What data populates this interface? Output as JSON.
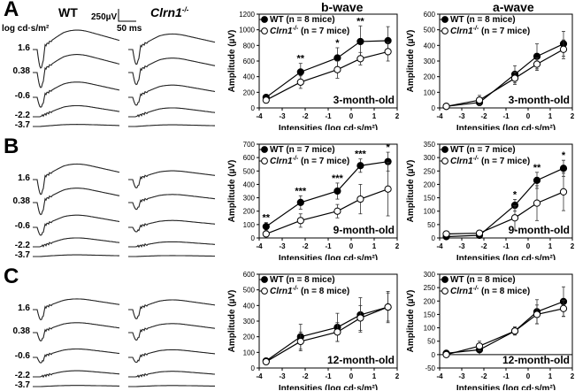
{
  "panels": [
    {
      "letter": "A",
      "wt_label": "WT",
      "ko_label": "Clrn1",
      "ko_sup": "-/-",
      "intensity_header": "log cd·s/m²",
      "scale_amp": "250µV",
      "scale_time": "50 ms",
      "intensities": [
        "1.6",
        "0.38",
        "-0.6",
        "-2.2",
        "-3.7"
      ]
    },
    {
      "letter": "B",
      "intensities": [
        "1.6",
        "0.38",
        "-0.6",
        "-2.2",
        "-3.7"
      ]
    },
    {
      "letter": "C",
      "intensities": [
        "1.6",
        "0.38",
        "-0.6",
        "-2.2",
        "-3.7"
      ]
    }
  ],
  "column_titles": {
    "bwave": "b-wave",
    "awave": "a-wave"
  },
  "colors": {
    "ink": "#000000",
    "background": "#ffffff"
  },
  "chart_data": [
    {
      "type": "line",
      "title": "b-wave",
      "age": "3-month-old",
      "xlabel": "Intensities (log cd·s/m²)",
      "ylabel": "Amplitude (µV)",
      "xlim": [
        -4,
        2
      ],
      "ylim": [
        0,
        1200
      ],
      "yticks": [
        0,
        200,
        400,
        600,
        800,
        1000,
        1200
      ],
      "xticks": [
        -4,
        -3,
        -2,
        -1,
        0,
        1,
        2
      ],
      "legend": "top-left",
      "x": [
        -3.7,
        -2.2,
        -0.6,
        0.4,
        1.6
      ],
      "series": [
        {
          "name": "WT (n = 8 mice)",
          "values": [
            135,
            460,
            640,
            850,
            860
          ],
          "err": [
            30,
            110,
            130,
            200,
            180
          ],
          "marker": "filled"
        },
        {
          "name_main": "Clrn1",
          "name_sup": "-/-",
          "name_rest": " (n = 7 mice)",
          "values": [
            100,
            330,
            490,
            630,
            720
          ],
          "err": [
            25,
            80,
            110,
            80,
            120
          ],
          "marker": "open"
        }
      ],
      "annotations": [
        {
          "x": -2.2,
          "text": "**"
        },
        {
          "x": -0.6,
          "text": "*"
        },
        {
          "x": 0.4,
          "text": "**"
        }
      ]
    },
    {
      "type": "line",
      "title": "a-wave",
      "age": "3-month-old",
      "xlabel": "Intensities (log cd·s/m²)",
      "ylabel": "Amplitude (µV)",
      "xlim": [
        -4,
        2
      ],
      "ylim": [
        0,
        600
      ],
      "yticks": [
        0,
        100,
        200,
        300,
        400,
        500,
        600
      ],
      "xticks": [
        -4,
        -3,
        -2,
        -1,
        0,
        1,
        2
      ],
      "legend": "top-left",
      "x": [
        -3.7,
        -2.2,
        -0.6,
        0.4,
        1.6
      ],
      "series": [
        {
          "name": "WT (n = 8 mice)",
          "values": [
            10,
            35,
            215,
            330,
            410
          ],
          "err": [
            5,
            20,
            55,
            80,
            80
          ],
          "marker": "filled"
        },
        {
          "name_main": "Clrn1",
          "name_sup": "-/-",
          "name_rest": " (n = 7 mice)",
          "values": [
            10,
            50,
            190,
            280,
            375
          ],
          "err": [
            5,
            30,
            40,
            40,
            60
          ],
          "marker": "open"
        }
      ],
      "annotations": []
    },
    {
      "type": "line",
      "title": "b-wave",
      "age": "9-month-old",
      "xlabel": "Intensities (log cd·s/m²)",
      "ylabel": "Amplitude (µV)",
      "xlim": [
        -4,
        2
      ],
      "ylim": [
        0,
        700
      ],
      "yticks": [
        0,
        100,
        200,
        300,
        400,
        500,
        600,
        700
      ],
      "xticks": [
        -4,
        -3,
        -2,
        -1,
        0,
        1,
        2
      ],
      "legend": "top-left",
      "x": [
        -3.7,
        -2.2,
        -0.6,
        0.4,
        1.6
      ],
      "series": [
        {
          "name": "WT (n = 7 mice)",
          "values": [
            85,
            265,
            350,
            540,
            570
          ],
          "err": [
            30,
            50,
            60,
            50,
            70
          ],
          "marker": "filled"
        },
        {
          "name_main": "Clrn1",
          "name_sup": "-/-",
          "name_rest": " (n = 7 mice)",
          "values": [
            30,
            130,
            200,
            290,
            365
          ],
          "err": [
            20,
            50,
            50,
            110,
            200
          ],
          "marker": "open"
        }
      ],
      "annotations": [
        {
          "x": -3.7,
          "text": "**"
        },
        {
          "x": -2.2,
          "text": "***"
        },
        {
          "x": -0.6,
          "text": "***"
        },
        {
          "x": 0.4,
          "text": "***"
        },
        {
          "x": 1.6,
          "text": "*"
        }
      ]
    },
    {
      "type": "line",
      "title": "a-wave",
      "age": "9-month-old",
      "xlabel": "Intensities (log cd·s/m²)",
      "ylabel": "Amplitude (µV)",
      "xlim": [
        -4,
        2
      ],
      "ylim": [
        0,
        350
      ],
      "yticks": [
        0,
        50,
        100,
        150,
        200,
        250,
        300,
        350
      ],
      "xticks": [
        -4,
        -3,
        -2,
        -1,
        0,
        1,
        2
      ],
      "legend": "top-left",
      "x": [
        -3.7,
        -2.2,
        -0.6,
        0.4,
        1.6
      ],
      "series": [
        {
          "name": "WT (n = 7 mice)",
          "values": [
            5,
            10,
            122,
            215,
            260
          ],
          "err": [
            5,
            8,
            22,
            30,
            30
          ],
          "marker": "filled"
        },
        {
          "name_main": "Clrn1",
          "name_sup": "-/-",
          "name_rest": " (n = 7 mice)",
          "values": [
            15,
            18,
            75,
            130,
            172
          ],
          "err": [
            8,
            10,
            45,
            65,
            70
          ],
          "marker": "open"
        }
      ],
      "annotations": [
        {
          "x": -0.6,
          "text": "*"
        },
        {
          "x": 0.4,
          "text": "**"
        },
        {
          "x": 1.6,
          "text": "*"
        }
      ]
    },
    {
      "type": "line",
      "title": "b-wave",
      "age": "12-month-old",
      "xlabel": "Intensities (log cd·s/m²)",
      "ylabel": "Amplitude (µV)",
      "xlim": [
        -4,
        2
      ],
      "ylim": [
        0,
        600
      ],
      "yticks": [
        0,
        100,
        200,
        300,
        400,
        500,
        600
      ],
      "xticks": [
        -4,
        -3,
        -2,
        -1,
        0,
        1,
        2
      ],
      "legend": "top-left",
      "x": [
        -3.7,
        -2.2,
        -0.6,
        0.4,
        1.6
      ],
      "series": [
        {
          "name": "WT (n = 8 mice)",
          "values": [
            45,
            200,
            260,
            340,
            390
          ],
          "err": [
            10,
            80,
            90,
            110,
            100
          ],
          "marker": "filled"
        },
        {
          "name_main": "Clrn1",
          "name_sup": "-/-",
          "name_rest": " (n = 8 mice)",
          "values": [
            40,
            170,
            230,
            320,
            390
          ],
          "err": [
            10,
            60,
            60,
            80,
            90
          ],
          "marker": "open"
        }
      ],
      "annotations": []
    },
    {
      "type": "line",
      "title": "a-wave",
      "age": "12-month-old",
      "xlabel": "Intensities (log cd·s/m²)",
      "ylabel": "Amplitude (µV)",
      "xlim": [
        -4,
        2
      ],
      "ylim": [
        -50,
        300
      ],
      "yticks": [
        -50,
        0,
        50,
        100,
        150,
        200,
        250,
        300
      ],
      "xticks": [
        -4,
        -3,
        -2,
        -1,
        0,
        1,
        2
      ],
      "legend": "top-left",
      "x": [
        -3.7,
        -2.2,
        -0.6,
        0.4,
        1.6
      ],
      "series": [
        {
          "name": "WT (n = 8 mice)",
          "values": [
            5,
            18,
            88,
            160,
            198
          ],
          "err": [
            5,
            18,
            15,
            45,
            55
          ],
          "marker": "filled"
        },
        {
          "name_main": "Clrn1",
          "name_sup": "-/-",
          "name_rest": " (n = 8 mice)",
          "values": [
            0,
            32,
            88,
            150,
            172
          ],
          "err": [
            5,
            18,
            15,
            35,
            30
          ],
          "marker": "open"
        }
      ],
      "annotations": []
    }
  ]
}
